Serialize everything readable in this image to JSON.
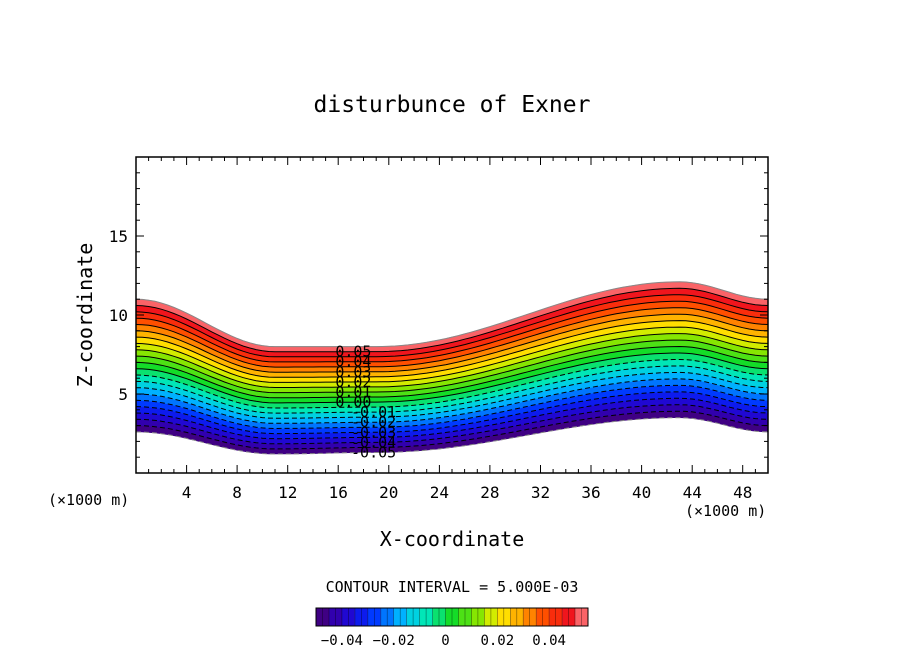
{
  "chart_data": {
    "type": "contour",
    "title": "disturbunce of Exner",
    "xlabel": "X-coordinate",
    "ylabel": "Z-coordinate",
    "x_unit_left": "(×1000 m)",
    "x_unit_right": "(×1000 m)",
    "xlim": [
      0,
      50
    ],
    "ylim": [
      0,
      20
    ],
    "x_ticks": [
      4,
      8,
      12,
      16,
      20,
      24,
      28,
      32,
      36,
      40,
      44,
      48
    ],
    "y_ticks": [
      5,
      10,
      15
    ],
    "contour_interval_text": "CONTOUR INTERVAL = 5.000E-03",
    "contour_interval": 0.005,
    "value_range": [
      -0.05,
      0.055
    ],
    "contour_labels": [
      "0.05",
      "0.04",
      "0.03",
      "0.02",
      "0.01",
      "0.00",
      "-0.01",
      "-0.02",
      "-0.03",
      "-0.04",
      "-0.05"
    ],
    "colorbar": {
      "range": [
        -0.05,
        0.055
      ],
      "tick_values": [
        -0.04,
        -0.02,
        0,
        0.02,
        0.04
      ],
      "tick_labels": [
        "−0.04",
        "−0.02",
        "0",
        "0.02",
        "0.04"
      ]
    },
    "band": {
      "bottom_z": [
        2.6,
        1.2,
        1.3,
        3.5,
        2.6
      ],
      "top_z": [
        11.0,
        8.0,
        8.0,
        12.1,
        11.0
      ],
      "x_at": [
        0,
        11,
        19,
        43,
        50
      ]
    },
    "negative_contours_dashed": true
  }
}
